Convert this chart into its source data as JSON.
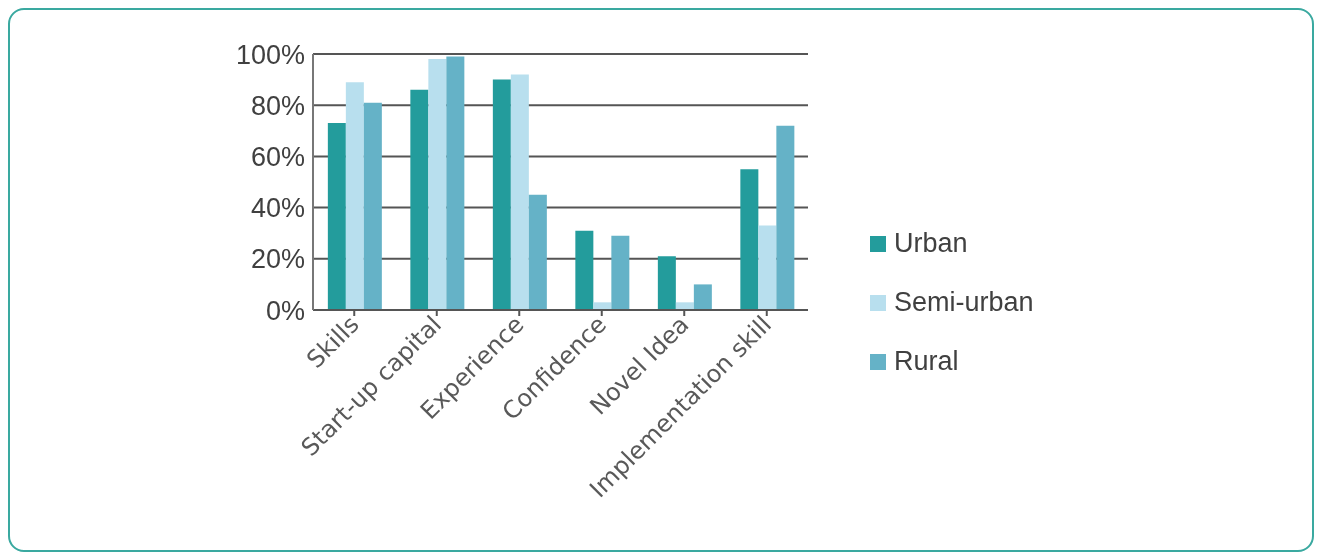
{
  "chart_data": {
    "type": "bar",
    "categories": [
      "Skills",
      "Start-up capital",
      "Experience",
      "Confidence",
      "Novel Idea",
      "Implementation skill"
    ],
    "series": [
      {
        "name": "Urban",
        "color": "#239c9c",
        "values": [
          73,
          86,
          90,
          31,
          21,
          55
        ]
      },
      {
        "name": "Semi-urban",
        "color": "#b8dfee",
        "values": [
          89,
          98,
          92,
          3,
          3,
          33
        ]
      },
      {
        "name": "Rural",
        "color": "#65b2c7",
        "values": [
          81,
          99,
          45,
          29,
          10,
          72
        ]
      }
    ],
    "ylim": [
      0,
      100
    ],
    "yticks": [
      {
        "value": 0,
        "label": "0%"
      },
      {
        "value": 20,
        "label": "20%"
      },
      {
        "value": 40,
        "label": "40%"
      },
      {
        "value": 60,
        "label": "60%"
      },
      {
        "value": 80,
        "label": "80%"
      },
      {
        "value": 100,
        "label": "100%"
      }
    ],
    "grid": "y",
    "legend": "right"
  }
}
